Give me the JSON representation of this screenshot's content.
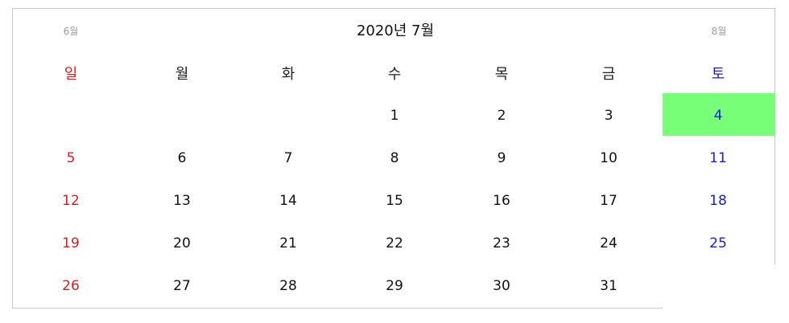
{
  "calendar": {
    "title": "2020년 7월",
    "prev_label": "6월",
    "next_label": "8월",
    "weekdays": [
      "일",
      "월",
      "화",
      "수",
      "목",
      "금",
      "토"
    ],
    "weeks": [
      [
        "",
        "",
        "",
        "1",
        "2",
        "3",
        "4"
      ],
      [
        "5",
        "6",
        "7",
        "8",
        "9",
        "10",
        "11"
      ],
      [
        "12",
        "13",
        "14",
        "15",
        "16",
        "17",
        "18"
      ],
      [
        "19",
        "20",
        "21",
        "22",
        "23",
        "24",
        "25"
      ],
      [
        "26",
        "27",
        "28",
        "29",
        "30",
        "31",
        ""
      ]
    ],
    "selected_day": "4",
    "colors": {
      "sunday": "#e11a1a",
      "saturday": "#1a1ae1",
      "selected_background": "#77ff77",
      "nav_text": "#9a9a9a"
    }
  }
}
